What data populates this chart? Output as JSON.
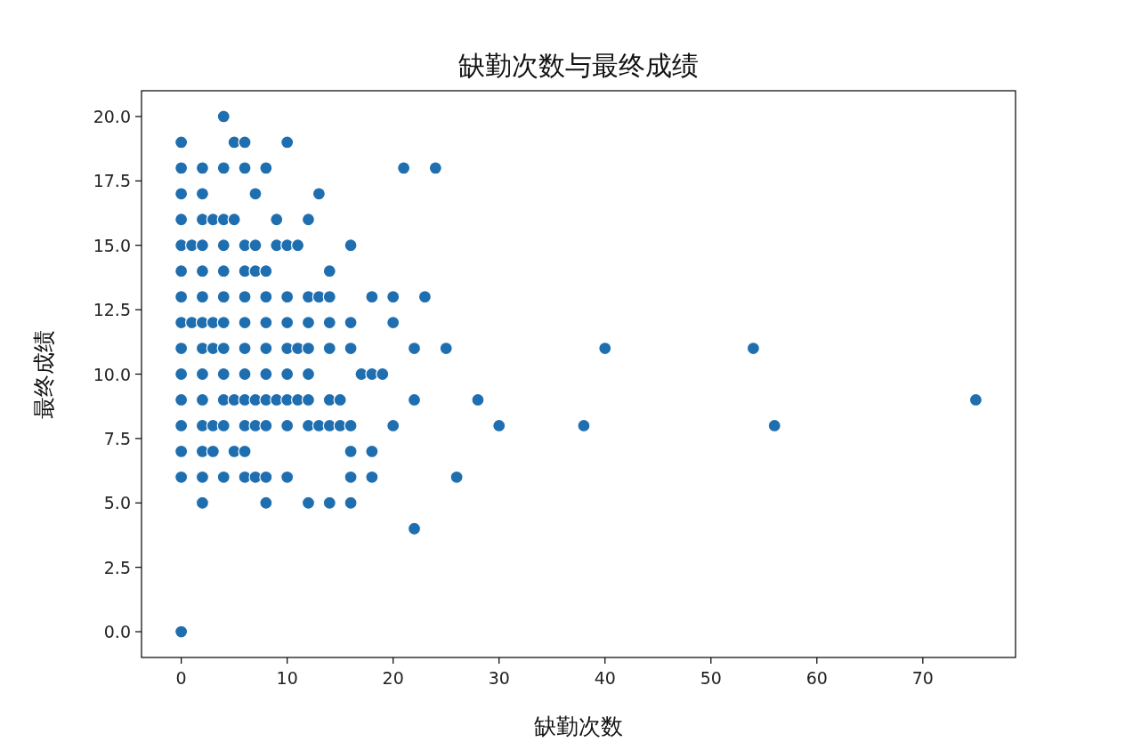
{
  "chart_data": {
    "type": "scatter",
    "title": "缺勤次数与最终成绩",
    "xlabel": "缺勤次数",
    "ylabel": "最终成绩",
    "xlim": [
      -3.75,
      78.75
    ],
    "ylim": [
      -1,
      21
    ],
    "xticks": [
      0,
      10,
      20,
      30,
      40,
      50,
      60,
      70
    ],
    "yticks": [
      {
        "value": 0,
        "label": "0.0"
      },
      {
        "value": 2.5,
        "label": "2.5"
      },
      {
        "value": 5,
        "label": "5.0"
      },
      {
        "value": 7.5,
        "label": "7.5"
      },
      {
        "value": 10,
        "label": "10.0"
      },
      {
        "value": 12.5,
        "label": "12.5"
      },
      {
        "value": 15,
        "label": "15.0"
      },
      {
        "value": 17.5,
        "label": "17.5"
      },
      {
        "value": 20,
        "label": "20.0"
      }
    ],
    "grid": false,
    "marker": "circle",
    "series": [
      {
        "color": "#1f6fb0",
        "x": [
          4,
          0,
          5,
          6,
          10,
          0,
          2,
          4,
          6,
          8,
          21,
          24,
          0,
          2,
          7,
          13,
          0,
          2,
          3,
          4,
          5,
          9,
          12,
          0,
          1,
          2,
          4,
          6,
          7,
          9,
          10,
          11,
          16,
          0,
          2,
          4,
          6,
          7,
          8,
          14,
          0,
          2,
          4,
          6,
          8,
          10,
          12,
          13,
          14,
          18,
          20,
          23,
          0,
          1,
          2,
          3,
          4,
          6,
          8,
          10,
          12,
          14,
          16,
          20,
          0,
          2,
          3,
          4,
          6,
          8,
          10,
          11,
          12,
          14,
          16,
          22,
          25,
          40,
          54,
          0,
          2,
          4,
          6,
          8,
          10,
          12,
          17,
          18,
          19,
          0,
          2,
          4,
          5,
          6,
          7,
          8,
          9,
          10,
          11,
          12,
          14,
          15,
          22,
          28,
          75,
          0,
          2,
          3,
          4,
          6,
          7,
          8,
          10,
          12,
          13,
          14,
          15,
          16,
          20,
          30,
          38,
          56,
          0,
          2,
          3,
          5,
          6,
          16,
          18,
          0,
          2,
          4,
          6,
          7,
          8,
          10,
          16,
          18,
          26,
          2,
          8,
          12,
          14,
          16,
          22,
          0
        ],
        "values": [
          20,
          19,
          19,
          19,
          19,
          18,
          18,
          18,
          18,
          18,
          18,
          18,
          17,
          17,
          17,
          17,
          16,
          16,
          16,
          16,
          16,
          16,
          16,
          15,
          15,
          15,
          15,
          15,
          15,
          15,
          15,
          15,
          15,
          14,
          14,
          14,
          14,
          14,
          14,
          14,
          13,
          13,
          13,
          13,
          13,
          13,
          13,
          13,
          13,
          13,
          13,
          13,
          12,
          12,
          12,
          12,
          12,
          12,
          12,
          12,
          12,
          12,
          12,
          12,
          11,
          11,
          11,
          11,
          11,
          11,
          11,
          11,
          11,
          11,
          11,
          11,
          11,
          11,
          11,
          10,
          10,
          10,
          10,
          10,
          10,
          10,
          10,
          10,
          10,
          9,
          9,
          9,
          9,
          9,
          9,
          9,
          9,
          9,
          9,
          9,
          9,
          9,
          9,
          9,
          9,
          8,
          8,
          8,
          8,
          8,
          8,
          8,
          8,
          8,
          8,
          8,
          8,
          8,
          8,
          8,
          8,
          8,
          7,
          7,
          7,
          7,
          7,
          7,
          7,
          6,
          6,
          6,
          6,
          6,
          6,
          6,
          6,
          6,
          6,
          5,
          5,
          5,
          5,
          5,
          4,
          0
        ]
      }
    ]
  }
}
